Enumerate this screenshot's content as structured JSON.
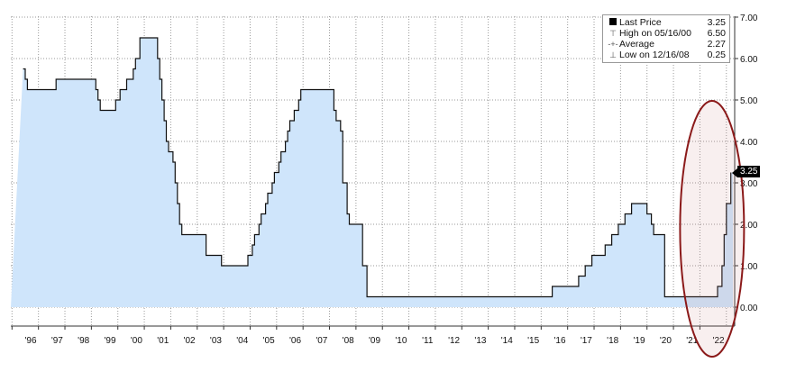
{
  "chart_data": {
    "type": "area",
    "title": "",
    "xlabel": "",
    "ylabel": "",
    "ylim": [
      -0.5,
      7.0
    ],
    "y_ticks": [
      "0.00",
      "1.00",
      "2.00",
      "3.00",
      "4.00",
      "5.00",
      "6.00",
      "7.00"
    ],
    "x_ticks": [
      "'96",
      "'97",
      "'98",
      "'99",
      "'00",
      "'01",
      "'02",
      "'03",
      "'04",
      "'05",
      "'06",
      "'07",
      "'08",
      "'09",
      "'10",
      "'11",
      "'12",
      "'13",
      "'14",
      "'15",
      "'16",
      "'17",
      "'18",
      "'19",
      "'20",
      "'21",
      "'22"
    ],
    "grid": true,
    "legend_position": "top-right",
    "fill_color": "#cfe5fb",
    "line_color": "#111111",
    "highlight_color": "#8b1a1a",
    "series": [
      {
        "name": "Last Price",
        "x": [
          "1995-12",
          "1996-01",
          "1996-02",
          "1997-03",
          "1998-09",
          "1998-10",
          "1998-11",
          "1999-06",
          "1999-08",
          "1999-11",
          "2000-02",
          "2000-03",
          "2000-05",
          "2001-01",
          "2001-02",
          "2001-03",
          "2001-04",
          "2001-05",
          "2001-06",
          "2001-08",
          "2001-09",
          "2001-10",
          "2001-11",
          "2001-12",
          "2002-11",
          "2003-06",
          "2004-06",
          "2004-08",
          "2004-09",
          "2004-11",
          "2004-12",
          "2005-02",
          "2005-03",
          "2005-05",
          "2005-06",
          "2005-08",
          "2005-09",
          "2005-11",
          "2005-12",
          "2006-01",
          "2006-03",
          "2006-05",
          "2006-06",
          "2007-09",
          "2007-10",
          "2007-12",
          "2008-01",
          "2008-03",
          "2008-04",
          "2008-10",
          "2008-12",
          "2015-12",
          "2016-12",
          "2017-03",
          "2017-06",
          "2017-12",
          "2018-03",
          "2018-06",
          "2018-09",
          "2018-12",
          "2019-07",
          "2019-09",
          "2019-10",
          "2020-03",
          "2022-03",
          "2022-05",
          "2022-06",
          "2022-07",
          "2022-09"
        ],
        "values": [
          5.75,
          5.5,
          5.25,
          5.5,
          5.25,
          5.0,
          4.75,
          5.0,
          5.25,
          5.5,
          5.75,
          6.0,
          6.5,
          6.0,
          5.5,
          5.0,
          4.5,
          4.0,
          3.75,
          3.5,
          3.0,
          2.5,
          2.0,
          1.75,
          1.25,
          1.0,
          1.25,
          1.5,
          1.75,
          2.0,
          2.25,
          2.5,
          2.75,
          3.0,
          3.25,
          3.5,
          3.75,
          4.0,
          4.25,
          4.5,
          4.75,
          5.0,
          5.25,
          4.75,
          4.5,
          4.25,
          3.0,
          2.25,
          2.0,
          1.0,
          0.25,
          0.5,
          0.75,
          1.0,
          1.25,
          1.5,
          1.75,
          2.0,
          2.25,
          2.5,
          2.25,
          2.0,
          1.75,
          0.25,
          0.5,
          1.0,
          1.75,
          2.5,
          3.25
        ]
      }
    ],
    "end_date": "2022-10",
    "last_value_label": "3.25",
    "highlight": {
      "shape": "ellipse",
      "from": "2020-10",
      "to": "2023-03"
    }
  },
  "legend": {
    "rows": [
      {
        "icon": "last-price-square-icon",
        "label": "Last Price",
        "value": "3.25"
      },
      {
        "icon": "high-marker-icon",
        "label": "High on 05/16/00",
        "value": "6.50"
      },
      {
        "icon": "average-marker-icon",
        "label": "Average",
        "value": "2.27"
      },
      {
        "icon": "low-marker-icon",
        "label": "Low on 12/16/08",
        "value": "0.25"
      }
    ]
  }
}
